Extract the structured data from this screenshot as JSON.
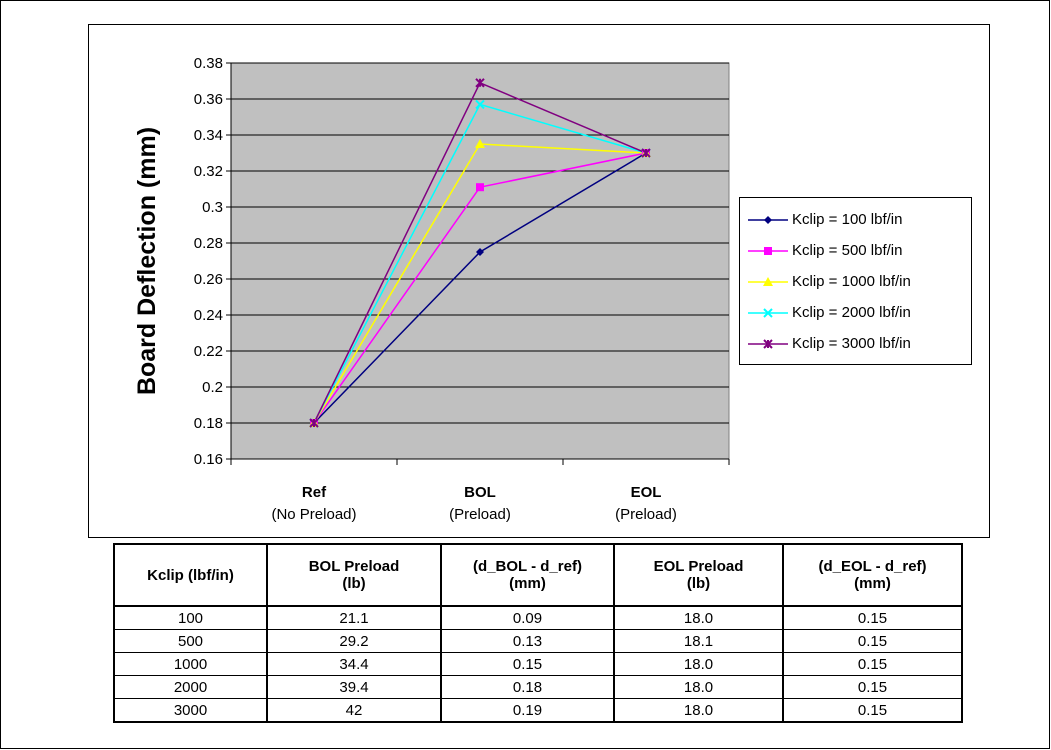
{
  "chart_data": {
    "type": "line",
    "categories": [
      {
        "label": "Ref",
        "sublabel": "(No Preload)"
      },
      {
        "label": "BOL",
        "sublabel": "(Preload)"
      },
      {
        "label": "EOL",
        "sublabel": "(Preload)"
      }
    ],
    "ylabel": "Board Deflection (mm)",
    "ylim": [
      0.16,
      0.38
    ],
    "ytick_step": 0.02,
    "yticks": [
      "0.16",
      "0.18",
      "0.2",
      "0.22",
      "0.24",
      "0.26",
      "0.28",
      "0.3",
      "0.32",
      "0.34",
      "0.36",
      "0.38"
    ],
    "grid": true,
    "legend_position": "right",
    "plot_background": "#c0c0c0",
    "series": [
      {
        "name": "Kclip = 100 lbf/in",
        "color": "#000080",
        "marker": "diamond",
        "values": [
          0.18,
          0.275,
          0.33
        ]
      },
      {
        "name": "Kclip = 500 lbf/in",
        "color": "#ff00ff",
        "marker": "square",
        "values": [
          0.18,
          0.311,
          0.33
        ]
      },
      {
        "name": "Kclip = 1000 lbf/in",
        "color": "#ffff00",
        "marker": "triangle",
        "values": [
          0.18,
          0.335,
          0.33
        ]
      },
      {
        "name": "Kclip = 2000 lbf/in",
        "color": "#00ffff",
        "marker": "x",
        "values": [
          0.18,
          0.357,
          0.33
        ]
      },
      {
        "name": "Kclip = 3000 lbf/in",
        "color": "#800080",
        "marker": "star",
        "values": [
          0.18,
          0.369,
          0.33
        ]
      }
    ]
  },
  "table": {
    "headers": [
      {
        "line1": "Kclip (lbf/in)",
        "line2": ""
      },
      {
        "line1": "BOL Preload",
        "line2": "(lb)"
      },
      {
        "line1": "(d_BOL - d_ref)",
        "line2": "(mm)"
      },
      {
        "line1": "EOL Preload",
        "line2": "(lb)"
      },
      {
        "line1": "(d_EOL - d_ref)",
        "line2": "(mm)"
      }
    ],
    "rows": [
      [
        "100",
        "21.1",
        "0.09",
        "18.0",
        "0.15"
      ],
      [
        "500",
        "29.2",
        "0.13",
        "18.1",
        "0.15"
      ],
      [
        "1000",
        "34.4",
        "0.15",
        "18.0",
        "0.15"
      ],
      [
        "2000",
        "39.4",
        "0.18",
        "18.0",
        "0.15"
      ],
      [
        "3000",
        "42",
        "0.19",
        "18.0",
        "0.15"
      ]
    ]
  }
}
